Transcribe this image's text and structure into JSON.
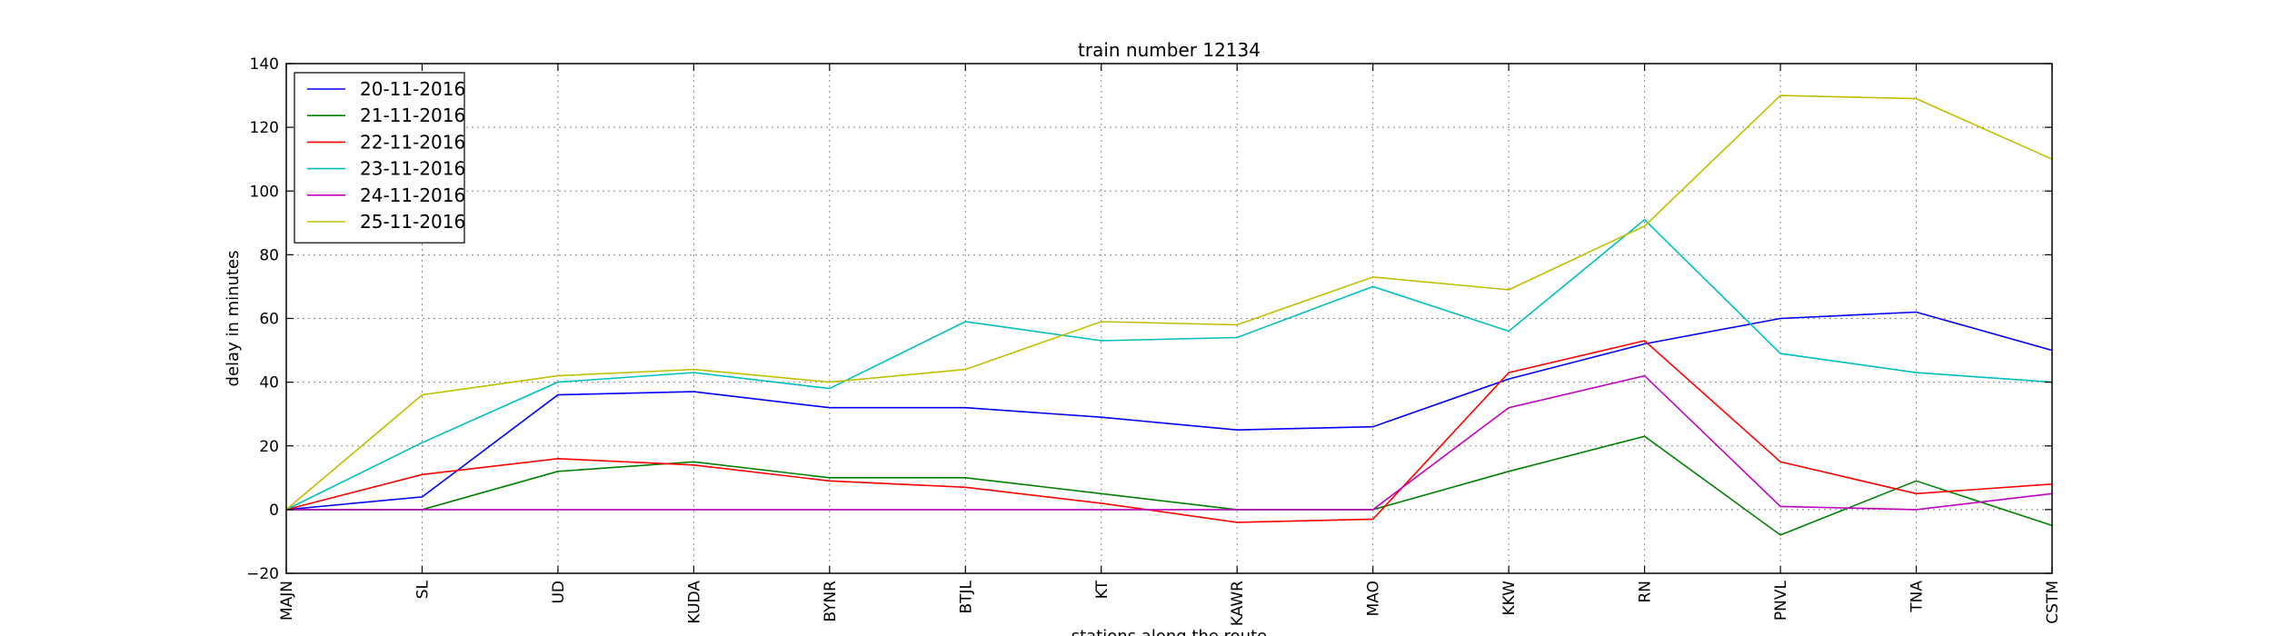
{
  "chart_data": {
    "type": "line",
    "title": "train number 12134",
    "xlabel": "stations along the route",
    "ylabel": "delay in minutes",
    "categories": [
      "MAJN",
      "SL",
      "UD",
      "KUDA",
      "BYNR",
      "BTJL",
      "KT",
      "KAWR",
      "MAO",
      "KKW",
      "RN",
      "PNVL",
      "TNA",
      "CSTM"
    ],
    "ylim": [
      -20,
      140
    ],
    "yticks": [
      -20,
      0,
      20,
      40,
      60,
      80,
      100,
      120,
      140
    ],
    "grid": true,
    "legend_position": "top-left",
    "series": [
      {
        "name": "20-11-2016",
        "color": "#0000ff",
        "values": [
          0,
          4,
          36,
          37,
          32,
          32,
          29,
          25,
          26,
          41,
          52,
          60,
          62,
          50
        ]
      },
      {
        "name": "21-11-2016",
        "color": "#008000",
        "values": [
          0,
          0,
          12,
          15,
          10,
          10,
          5,
          0,
          0,
          12,
          23,
          -8,
          9,
          -5
        ]
      },
      {
        "name": "22-11-2016",
        "color": "#ff0000",
        "values": [
          0,
          11,
          16,
          14,
          9,
          7,
          2,
          -4,
          -3,
          43,
          53,
          15,
          5,
          8
        ]
      },
      {
        "name": "23-11-2016",
        "color": "#00bfbf",
        "values": [
          0,
          21,
          40,
          43,
          38,
          59,
          53,
          54,
          70,
          56,
          91,
          49,
          43,
          40
        ]
      },
      {
        "name": "24-11-2016",
        "color": "#bf00bf",
        "values": [
          0,
          0,
          0,
          0,
          0,
          0,
          0,
          0,
          0,
          32,
          42,
          1,
          0,
          5
        ]
      },
      {
        "name": "25-11-2016",
        "color": "#bfbf00",
        "values": [
          0,
          36,
          42,
          44,
          40,
          44,
          59,
          58,
          73,
          69,
          89,
          130,
          129,
          110
        ]
      }
    ]
  }
}
